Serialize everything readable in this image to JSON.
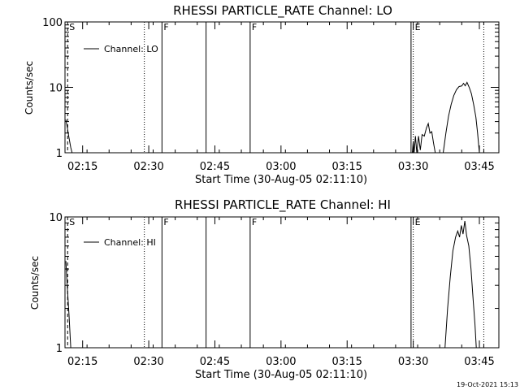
{
  "footer": {
    "timestamp": "19-Oct-2021 15:13"
  },
  "chart_data": [
    {
      "type": "line",
      "title": "RHESSI PARTICLE_RATE Channel: LO",
      "xlabel": "Start Time (30-Aug-05 02:11:10)",
      "ylabel": "Counts/sec",
      "yscale": "log",
      "ylim": [
        1,
        100
      ],
      "y_ticks": [
        {
          "value": 1,
          "label": "1"
        },
        {
          "value": 10,
          "label": "10"
        },
        {
          "value": 100,
          "label": "100"
        }
      ],
      "xlim_min": [
        0,
        94
      ],
      "x_ticks": [
        {
          "value": 4,
          "label": "02:15"
        },
        {
          "value": 19,
          "label": "02:30"
        },
        {
          "value": 34,
          "label": "02:45"
        },
        {
          "value": 49,
          "label": "03:00"
        },
        {
          "value": 64,
          "label": "03:15"
        },
        {
          "value": 79,
          "label": "03:30"
        },
        {
          "value": 94,
          "label": "03:45"
        }
      ],
      "legend": {
        "label": "Channel: LO",
        "position": "top-left"
      },
      "flag_lines": [
        {
          "t": 0.6,
          "label": "S",
          "style": "dashed"
        },
        {
          "t": 18,
          "label": "",
          "style": "dotted"
        },
        {
          "t": 22,
          "label": "F",
          "style": "solid"
        },
        {
          "t": 32,
          "label": "",
          "style": "solid"
        },
        {
          "t": 42,
          "label": "F",
          "style": "solid"
        },
        {
          "t": 78.5,
          "label": "",
          "style": "solid"
        },
        {
          "t": 79,
          "label": "E",
          "style": "dotted"
        },
        {
          "t": 95,
          "label": "",
          "style": "dotted"
        }
      ],
      "series": [
        {
          "name": "Channel: LO",
          "segments": [
            [
              [
                0.2,
                3.2
              ],
              [
                0.5,
                2.5
              ],
              [
                0.9,
                1.7
              ],
              [
                1.3,
                1.2
              ],
              [
                1.6,
                1.0
              ]
            ],
            [
              [
                78.8,
                1.0
              ],
              [
                79.0,
                1.5
              ],
              [
                79.2,
                1.0
              ],
              [
                79.5,
                1.8
              ],
              [
                79.8,
                1.0
              ],
              [
                80.2,
                1.8
              ],
              [
                80.6,
                1.1
              ],
              [
                81.0,
                1.9
              ],
              [
                81.5,
                1.8
              ],
              [
                82.0,
                2.4
              ],
              [
                82.4,
                2.8
              ],
              [
                82.8,
                2.0
              ],
              [
                83.2,
                2.1
              ],
              [
                83.6,
                1.4
              ],
              [
                84.0,
                1.0
              ]
            ],
            [
              [
                85.8,
                1.0
              ],
              [
                86.4,
                2.0
              ],
              [
                87.0,
                3.6
              ],
              [
                87.6,
                5.5
              ],
              [
                88.2,
                7.5
              ],
              [
                88.8,
                9.2
              ],
              [
                89.4,
                10.3
              ],
              [
                90.0,
                10.5
              ],
              [
                90.4,
                11.5
              ],
              [
                90.8,
                10.6
              ],
              [
                91.2,
                11.9
              ],
              [
                91.7,
                10.0
              ],
              [
                92.2,
                8.0
              ],
              [
                92.7,
                5.5
              ],
              [
                93.2,
                3.5
              ],
              [
                93.6,
                2.0
              ],
              [
                94.0,
                1.0
              ]
            ]
          ]
        }
      ]
    },
    {
      "type": "line",
      "title": "RHESSI PARTICLE_RATE Channel: HI",
      "xlabel": "Start Time (30-Aug-05 02:11:10)",
      "ylabel": "Counts/sec",
      "yscale": "log",
      "ylim": [
        1,
        10
      ],
      "y_ticks": [
        {
          "value": 1,
          "label": "1"
        },
        {
          "value": 10,
          "label": "10"
        }
      ],
      "xlim_min": [
        0,
        94
      ],
      "x_ticks": [
        {
          "value": 4,
          "label": "02:15"
        },
        {
          "value": 19,
          "label": "02:30"
        },
        {
          "value": 34,
          "label": "02:45"
        },
        {
          "value": 49,
          "label": "03:00"
        },
        {
          "value": 64,
          "label": "03:15"
        },
        {
          "value": 79,
          "label": "03:30"
        },
        {
          "value": 94,
          "label": "03:45"
        }
      ],
      "legend": {
        "label": "Channel: HI",
        "position": "top-left"
      },
      "flag_lines": [
        {
          "t": 0.6,
          "label": "S",
          "style": "dashed"
        },
        {
          "t": 18,
          "label": "",
          "style": "dotted"
        },
        {
          "t": 22,
          "label": "F",
          "style": "solid"
        },
        {
          "t": 32,
          "label": "",
          "style": "solid"
        },
        {
          "t": 42,
          "label": "F",
          "style": "solid"
        },
        {
          "t": 78.5,
          "label": "",
          "style": "solid"
        },
        {
          "t": 79,
          "label": "E",
          "style": "dotted"
        },
        {
          "t": 95,
          "label": "",
          "style": "dotted"
        }
      ],
      "series": [
        {
          "name": "Channel: HI",
          "segments": [
            [
              [
                0.2,
                4.6
              ],
              [
                0.5,
                3.0
              ],
              [
                0.9,
                1.8
              ],
              [
                1.3,
                1.0
              ]
            ],
            [
              [
                86.2,
                1.0
              ],
              [
                86.8,
                2.0
              ],
              [
                87.4,
                3.5
              ],
              [
                88.0,
                5.5
              ],
              [
                88.6,
                7.0
              ],
              [
                89.1,
                7.8
              ],
              [
                89.5,
                7.0
              ],
              [
                89.9,
                8.6
              ],
              [
                90.3,
                7.4
              ],
              [
                90.7,
                9.3
              ],
              [
                91.1,
                7.2
              ],
              [
                91.6,
                6.0
              ],
              [
                92.1,
                4.0
              ],
              [
                92.6,
                2.3
              ],
              [
                93.0,
                1.5
              ],
              [
                93.3,
                1.0
              ]
            ]
          ]
        }
      ]
    }
  ]
}
